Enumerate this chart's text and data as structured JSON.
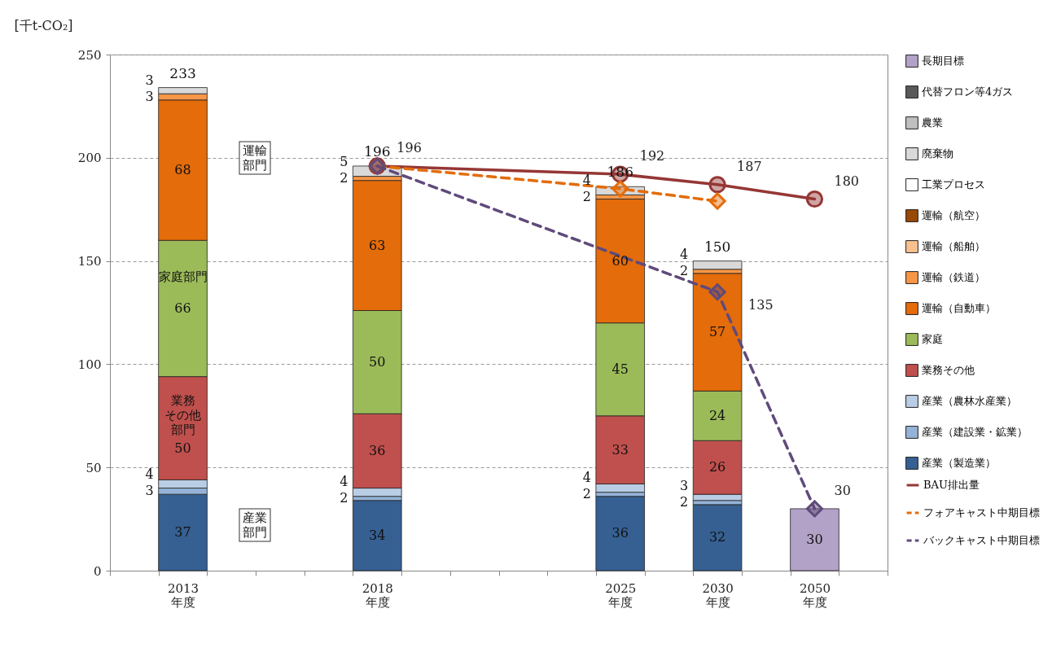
{
  "chart_data": {
    "type": "bar",
    "stacked": true,
    "ylabel": "[千t-CO₂]",
    "ylim": [
      0,
      250
    ],
    "yticks": [
      0,
      50,
      100,
      150,
      200,
      250
    ],
    "grid": "y",
    "legend": "right",
    "data_labels": true,
    "categories": [
      null,
      "2013\n年度",
      null,
      null,
      null,
      "2018\n年度",
      null,
      null,
      null,
      null,
      "2025\n年度",
      null,
      "2030\n年度",
      null,
      "2050\n年度",
      null
    ],
    "totals": [
      null,
      "233",
      null,
      null,
      null,
      "196",
      null,
      null,
      null,
      null,
      "186",
      null,
      "150",
      null,
      null,
      null
    ],
    "series": [
      {
        "name": "産業（製造業）",
        "color": "#366092",
        "values": [
          null,
          37,
          null,
          null,
          null,
          34,
          null,
          null,
          null,
          null,
          36,
          null,
          32,
          null,
          null,
          null
        ]
      },
      {
        "name": "産業（建設業・鉱業）",
        "color": "#95b3d7",
        "values": [
          null,
          3,
          null,
          null,
          null,
          2,
          null,
          null,
          null,
          null,
          2,
          null,
          2,
          null,
          null,
          null
        ]
      },
      {
        "name": "産業（農林水産業）",
        "color": "#b9cde5",
        "values": [
          null,
          4,
          null,
          null,
          null,
          4,
          null,
          null,
          null,
          null,
          4,
          null,
          3,
          null,
          null,
          null
        ]
      },
      {
        "name": "業務その他",
        "color": "#c0504d",
        "values": [
          null,
          50,
          null,
          null,
          null,
          36,
          null,
          null,
          null,
          null,
          33,
          null,
          26,
          null,
          null,
          null
        ]
      },
      {
        "name": "家庭",
        "color": "#9bbb59",
        "values": [
          null,
          66,
          null,
          null,
          null,
          50,
          null,
          null,
          null,
          null,
          45,
          null,
          24,
          null,
          null,
          null
        ]
      },
      {
        "name": "運輸（自動車）",
        "color": "#e46c0a",
        "values": [
          null,
          68,
          null,
          null,
          null,
          63,
          null,
          null,
          null,
          null,
          60,
          null,
          57,
          null,
          null,
          null
        ]
      },
      {
        "name": "運輸（鉄道）",
        "color": "#f79646",
        "values": [
          null,
          3,
          null,
          null,
          null,
          2,
          null,
          null,
          null,
          null,
          2,
          null,
          2,
          null,
          null,
          null
        ]
      },
      {
        "name": "運輸（船舶）",
        "color": "#fac090",
        "values": [
          null,
          null,
          null,
          null,
          null,
          null,
          null,
          null,
          null,
          null,
          null,
          null,
          null,
          null,
          null,
          null
        ]
      },
      {
        "name": "運輸（航空）",
        "color": "#984807",
        "values": [
          null,
          null,
          null,
          null,
          null,
          null,
          null,
          null,
          null,
          null,
          null,
          null,
          null,
          null,
          null,
          null
        ]
      },
      {
        "name": "工業プロセス",
        "color": "#ffffff",
        "values": [
          null,
          null,
          null,
          null,
          null,
          null,
          null,
          null,
          null,
          null,
          null,
          null,
          null,
          null,
          null,
          null
        ]
      },
      {
        "name": "廃棄物",
        "color": "#d9d9d9",
        "values": [
          null,
          3,
          null,
          null,
          null,
          5,
          null,
          null,
          null,
          null,
          4,
          null,
          4,
          null,
          null,
          null
        ]
      },
      {
        "name": "農業",
        "color": "#bfbfbf",
        "values": [
          null,
          null,
          null,
          null,
          null,
          null,
          null,
          null,
          null,
          null,
          null,
          null,
          null,
          null,
          null,
          null
        ]
      },
      {
        "name": "代替フロン等4ガス",
        "color": "#595959",
        "values": [
          null,
          null,
          null,
          null,
          null,
          null,
          null,
          null,
          null,
          null,
          null,
          null,
          null,
          null,
          null,
          null
        ]
      },
      {
        "name": "長期目標",
        "color": "#b3a2c7",
        "values": [
          null,
          null,
          null,
          null,
          null,
          null,
          null,
          null,
          null,
          null,
          null,
          null,
          null,
          null,
          30,
          null
        ]
      },
      {
        "name": "BAU排出量",
        "type": "line",
        "color": "#953735",
        "marker": "circle",
        "line_style": "solid",
        "x": [
          "2018\n年度",
          "2025\n年度",
          "2030\n年度",
          "2050\n年度"
        ],
        "values": [
          196,
          192,
          187,
          180
        ],
        "value_labels": [
          "196",
          "192",
          "187",
          "180"
        ]
      },
      {
        "name": "フォアキャスト中期目標",
        "type": "line",
        "color": "#e46c0a",
        "marker": "diamond",
        "line_style": "dashed",
        "x": [
          "2018\n年度",
          "2025\n年度",
          "2030\n年度"
        ],
        "values": [
          196,
          185,
          179
        ],
        "value_labels": [
          null,
          null,
          null
        ]
      },
      {
        "name": "バックキャスト中期目標",
        "type": "line",
        "color": "#604a7b",
        "marker": "diamond",
        "line_style": "dashed",
        "x": [
          "2018\n年度",
          "2030\n年度",
          "2050\n年度"
        ],
        "values": [
          196,
          135,
          30
        ],
        "value_labels": [
          null,
          "135",
          "30"
        ]
      }
    ],
    "annotations": [
      "運輸部門",
      "家庭部門",
      "業務その他部門",
      "産業部門"
    ]
  }
}
